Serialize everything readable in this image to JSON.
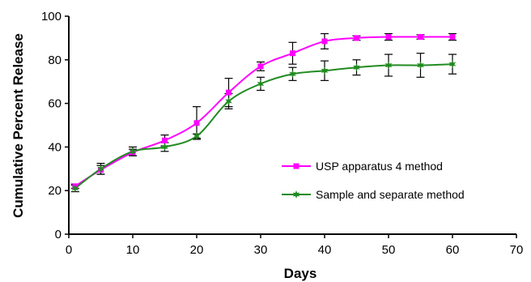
{
  "chart_data": {
    "type": "line",
    "title": "",
    "xlabel": "Days",
    "ylabel": "Cumulative Percent Release",
    "xlim": [
      0,
      70
    ],
    "ylim": [
      0,
      100
    ],
    "x_ticks": [
      0,
      10,
      20,
      30,
      40,
      50,
      60,
      70
    ],
    "y_ticks": [
      0,
      20,
      40,
      60,
      80,
      100
    ],
    "grid": false,
    "legend_position": "center-right",
    "series": [
      {
        "name": "USP apparatus 4 method",
        "color": "#ff00ff",
        "marker": "square",
        "x": [
          1,
          5,
          10,
          15,
          20,
          25,
          30,
          35,
          40,
          45,
          50,
          55,
          60
        ],
        "y": [
          22,
          29.5,
          37.5,
          43,
          51,
          65,
          77,
          83,
          88.5,
          90,
          90.5,
          90.5,
          90.5
        ],
        "error": [
          1,
          2,
          1.5,
          2.5,
          7.5,
          6.5,
          2,
          5,
          3.5,
          1,
          1.5,
          1,
          1.5
        ]
      },
      {
        "name": "Sample and separate method",
        "color": "#228b22",
        "marker": "star",
        "x": [
          1,
          5,
          10,
          15,
          20,
          25,
          30,
          35,
          40,
          45,
          50,
          55,
          60
        ],
        "y": [
          21,
          30,
          38,
          40,
          45,
          61,
          69,
          73.5,
          75,
          76.5,
          77.5,
          77.5,
          78
        ],
        "error": [
          1.5,
          2.5,
          2,
          2,
          1,
          3.5,
          3,
          3,
          4.5,
          3.5,
          5,
          5.5,
          4.5
        ]
      }
    ]
  }
}
